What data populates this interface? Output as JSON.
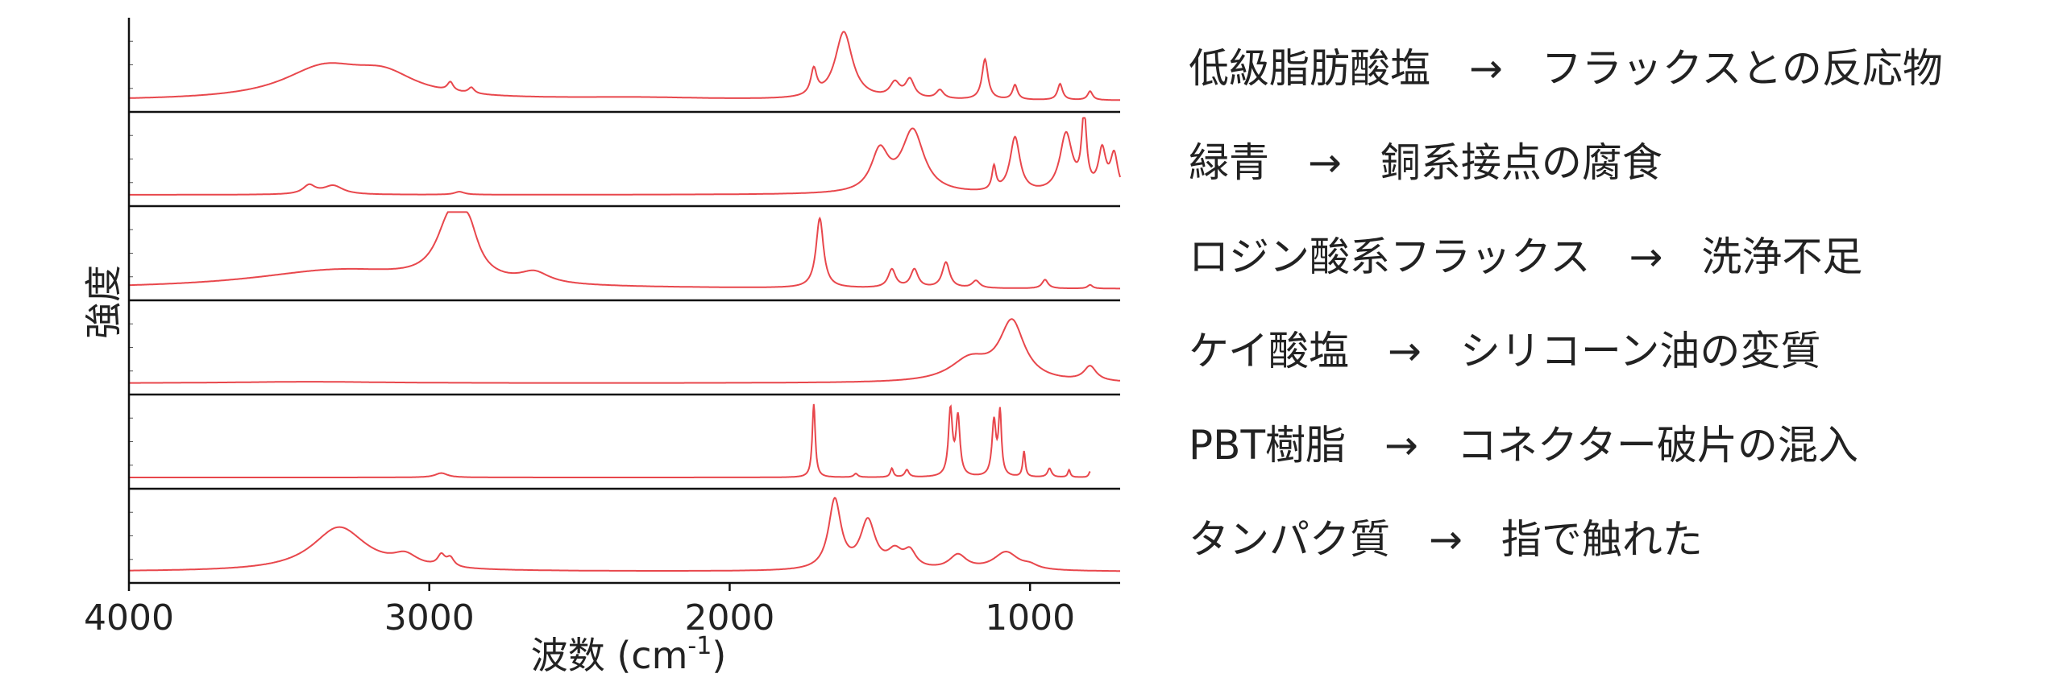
{
  "chart_data": {
    "type": "line",
    "title": "",
    "xlabel": "波数 (cm",
    "xlabel_sup": "-1",
    "xlabel_end": ")",
    "ylabel": "強度",
    "xlim": [
      4000,
      700
    ],
    "x_reversed": true,
    "xticks": [
      4000,
      3000,
      2000,
      1000
    ],
    "xtick_labels": [
      "4000",
      "3000",
      "2000",
      "1000"
    ],
    "series_color": "#e8474c",
    "series": [
      {
        "label": "低級脂肪酸塩",
        "arrow": "→",
        "cause": "フラックスとの反応物",
        "x_end": 700,
        "peaks": [
          [
            3350,
            0.42,
            170
          ],
          [
            3150,
            0.28,
            130
          ],
          [
            2930,
            0.12,
            12
          ],
          [
            2860,
            0.08,
            12
          ],
          [
            2300,
            0.03,
            300
          ],
          [
            1720,
            0.35,
            12
          ],
          [
            1620,
            0.92,
            35
          ],
          [
            1450,
            0.2,
            20
          ],
          [
            1400,
            0.25,
            18
          ],
          [
            1300,
            0.12,
            15
          ],
          [
            1150,
            0.55,
            12
          ],
          [
            1050,
            0.2,
            10
          ],
          [
            900,
            0.22,
            10
          ],
          [
            800,
            0.12,
            10
          ]
        ]
      },
      {
        "label": "緑青",
        "arrow": "→",
        "cause": "銅系接点の腐食",
        "x_end": 700,
        "peaks": [
          [
            3400,
            0.12,
            25
          ],
          [
            3320,
            0.12,
            40
          ],
          [
            2900,
            0.04,
            20
          ],
          [
            1500,
            0.55,
            35
          ],
          [
            1390,
            0.85,
            45
          ],
          [
            1120,
            0.32,
            8
          ],
          [
            1050,
            0.75,
            20
          ],
          [
            880,
            0.8,
            25
          ],
          [
            820,
            1.0,
            10
          ],
          [
            760,
            0.55,
            15
          ],
          [
            720,
            0.5,
            15
          ]
        ]
      },
      {
        "label": "ロジン酸系フラックス",
        "arrow": "→",
        "cause": "洗浄不足",
        "x_end": 700,
        "peaks": [
          [
            3300,
            0.25,
            350
          ],
          [
            2930,
            0.8,
            55
          ],
          [
            2870,
            0.55,
            40
          ],
          [
            2650,
            0.15,
            60
          ],
          [
            1700,
            0.95,
            15
          ],
          [
            1460,
            0.25,
            15
          ],
          [
            1385,
            0.25,
            15
          ],
          [
            1280,
            0.35,
            15
          ],
          [
            1180,
            0.1,
            15
          ],
          [
            950,
            0.12,
            12
          ],
          [
            800,
            0.05,
            10
          ]
        ]
      },
      {
        "label": "ケイ酸塩",
        "arrow": "→",
        "cause": "シリコーン油の変質",
        "x_end": 700,
        "peaks": [
          [
            3400,
            0.02,
            300
          ],
          [
            1200,
            0.3,
            80
          ],
          [
            1060,
            0.8,
            50
          ],
          [
            800,
            0.2,
            25
          ]
        ]
      },
      {
        "label": "PBT樹脂",
        "arrow": "→",
        "cause": "コネクター破片の混入",
        "x_end": 800,
        "peaks": [
          [
            2960,
            0.06,
            25
          ],
          [
            1720,
            1.0,
            6
          ],
          [
            1580,
            0.05,
            8
          ],
          [
            1460,
            0.12,
            6
          ],
          [
            1410,
            0.1,
            8
          ],
          [
            1265,
            0.9,
            8
          ],
          [
            1240,
            0.8,
            8
          ],
          [
            1120,
            0.75,
            8
          ],
          [
            1100,
            0.85,
            6
          ],
          [
            1020,
            0.35,
            5
          ],
          [
            935,
            0.12,
            8
          ],
          [
            870,
            0.1,
            5
          ],
          [
            800,
            0.08,
            5
          ]
        ]
      },
      {
        "label": "タンパク質",
        "arrow": "→",
        "cause": "指で触れた",
        "x_end": 700,
        "peaks": [
          [
            3300,
            0.6,
            110
          ],
          [
            3080,
            0.15,
            50
          ],
          [
            2960,
            0.15,
            15
          ],
          [
            2930,
            0.12,
            15
          ],
          [
            1650,
            0.95,
            25
          ],
          [
            1540,
            0.65,
            30
          ],
          [
            1450,
            0.22,
            30
          ],
          [
            1400,
            0.22,
            25
          ],
          [
            1240,
            0.2,
            35
          ],
          [
            1080,
            0.25,
            50
          ],
          [
            1000,
            0.05,
            30
          ]
        ]
      }
    ]
  }
}
